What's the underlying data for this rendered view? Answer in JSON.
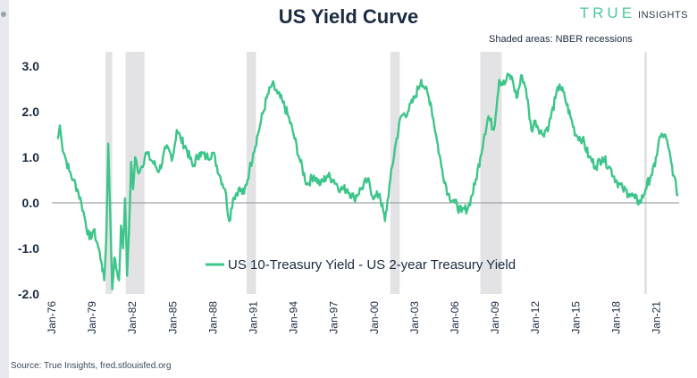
{
  "header": {
    "title": "US Yield Curve",
    "brand_main": "TRUE",
    "brand_sub": "INSIGHTS",
    "note": "Shaded areas: NBER recessions"
  },
  "footer": {
    "source": "Source: True Insights, fred.stlouisfed.org"
  },
  "colors": {
    "line": "#3ec58a",
    "recession": "#e3e3e6",
    "zero_line": "#8a8f96",
    "text": "#1b2b40"
  },
  "chart_data": {
    "type": "line",
    "title": "US Yield Curve",
    "xlabel": "",
    "ylabel": "",
    "ylim": [
      -2.0,
      3.0
    ],
    "xlim": [
      1976.0,
      2022.7
    ],
    "grid": false,
    "legend_position": "center",
    "y_ticks": [
      "3.0",
      "2.0",
      "1.0",
      "0.0",
      "-1.0",
      "-2.0"
    ],
    "y_tick_values": [
      3.0,
      2.0,
      1.0,
      0.0,
      -1.0,
      -2.0
    ],
    "x_ticks": [
      "Jan-76",
      "Jan-79",
      "Jan-82",
      "Jan-85",
      "Jan-88",
      "Jan-91",
      "Jan-94",
      "Jan-97",
      "Jan-00",
      "Jan-03",
      "Jan-06",
      "Jan-09",
      "Jan-12",
      "Jan-15",
      "Jan-18",
      "Jan-21"
    ],
    "x_tick_values": [
      1976,
      1979,
      1982,
      1985,
      1988,
      1991,
      1994,
      1997,
      2000,
      2003,
      2006,
      2009,
      2012,
      2015,
      2018,
      2021
    ],
    "recessions": [
      {
        "start": 1980.0,
        "end": 1980.5
      },
      {
        "start": 1981.5,
        "end": 1982.9
      },
      {
        "start": 1990.5,
        "end": 1991.2
      },
      {
        "start": 2001.2,
        "end": 2001.9
      },
      {
        "start": 2007.9,
        "end": 2009.5
      },
      {
        "start": 2020.1,
        "end": 2020.3
      }
    ],
    "series": [
      {
        "name": "US 10-Treasury Yield - US 2-year Treasury Yield",
        "x": [
          1976.45,
          1976.6,
          1976.75,
          1977.0,
          1977.3,
          1977.6,
          1977.9,
          1978.2,
          1978.5,
          1978.8,
          1979.1,
          1979.4,
          1979.7,
          1979.9,
          1980.05,
          1980.2,
          1980.35,
          1980.5,
          1980.65,
          1980.85,
          1981.0,
          1981.15,
          1981.3,
          1981.45,
          1981.6,
          1981.75,
          1981.9,
          1982.05,
          1982.2,
          1982.4,
          1982.7,
          1983.0,
          1983.5,
          1984.0,
          1984.5,
          1985.0,
          1985.3,
          1985.6,
          1986.0,
          1986.5,
          1987.0,
          1987.5,
          1988.0,
          1988.5,
          1988.9,
          1989.2,
          1989.5,
          1989.9,
          1990.3,
          1990.7,
          1991.0,
          1991.5,
          1992.0,
          1992.4,
          1992.8,
          1993.2,
          1993.6,
          1994.0,
          1994.5,
          1995.0,
          1995.5,
          1996.0,
          1996.5,
          1997.0,
          1997.5,
          1998.0,
          1998.5,
          1999.0,
          1999.5,
          2000.0,
          2000.4,
          2000.8,
          2001.2,
          2001.6,
          2002.0,
          2002.5,
          2003.0,
          2003.5,
          2003.8,
          2004.2,
          2004.6,
          2005.0,
          2005.5,
          2006.0,
          2006.5,
          2007.0,
          2007.5,
          2007.9,
          2008.2,
          2008.5,
          2008.9,
          2009.3,
          2009.7,
          2010.0,
          2010.3,
          2010.6,
          2011.0,
          2011.3,
          2011.7,
          2012.0,
          2012.5,
          2013.0,
          2013.5,
          2013.8,
          2014.2,
          2014.6,
          2015.0,
          2015.5,
          2016.0,
          2016.5,
          2017.0,
          2017.5,
          2018.0,
          2018.5,
          2019.0,
          2019.4,
          2019.8,
          2020.2,
          2020.6,
          2020.9,
          2021.2,
          2021.6,
          2021.9,
          2022.1,
          2022.3,
          2022.5,
          2022.6
        ],
        "values": [
          1.4,
          1.7,
          1.3,
          1.0,
          0.7,
          0.5,
          0.3,
          0.0,
          -0.4,
          -0.8,
          -0.6,
          -0.9,
          -1.3,
          -1.7,
          -0.8,
          1.3,
          -0.3,
          -1.9,
          -1.2,
          -1.5,
          -1.7,
          -0.5,
          -1.0,
          0.1,
          -1.6,
          -0.6,
          0.9,
          0.3,
          1.0,
          0.7,
          0.8,
          1.1,
          0.9,
          0.7,
          1.2,
          1.0,
          1.6,
          1.4,
          1.2,
          0.8,
          1.1,
          1.0,
          1.1,
          0.6,
          0.3,
          -0.4,
          0.1,
          0.3,
          0.2,
          0.7,
          1.1,
          1.7,
          2.3,
          2.6,
          2.4,
          2.2,
          1.9,
          1.5,
          0.9,
          0.4,
          0.6,
          0.4,
          0.6,
          0.5,
          0.3,
          0.3,
          0.1,
          0.3,
          0.5,
          0.1,
          0.2,
          -0.4,
          0.5,
          1.3,
          1.9,
          2.0,
          2.3,
          2.7,
          2.5,
          2.2,
          1.5,
          0.8,
          0.2,
          0.0,
          -0.2,
          -0.1,
          0.4,
          1.0,
          1.5,
          1.9,
          1.6,
          2.7,
          2.6,
          2.8,
          2.7,
          2.3,
          2.8,
          2.5,
          1.6,
          1.8,
          1.5,
          1.7,
          2.3,
          2.6,
          2.3,
          1.9,
          1.5,
          1.4,
          1.0,
          0.8,
          1.0,
          0.8,
          0.5,
          0.3,
          0.2,
          0.1,
          0.0,
          0.3,
          0.6,
          0.8,
          1.4,
          1.5,
          1.2,
          0.9,
          0.6,
          0.3,
          0.2
        ]
      }
    ]
  }
}
